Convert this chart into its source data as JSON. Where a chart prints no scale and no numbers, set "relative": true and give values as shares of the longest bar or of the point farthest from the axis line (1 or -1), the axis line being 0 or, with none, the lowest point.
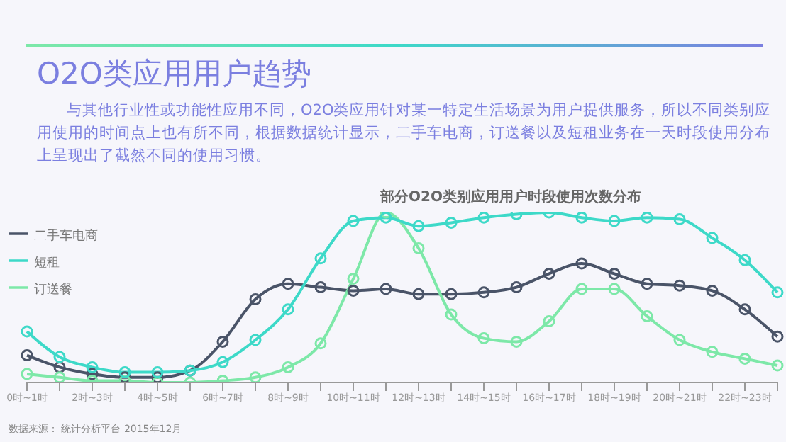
{
  "chart_data": {
    "type": "line",
    "title": "O2O类应用用户趋势",
    "subtitle": "与其他行业性或功能性应用不同，O2O类应用针对某一特定生活场景为用户提供服务，所以不同类别应用使用的时间点上也有所不同，根据数据统计显示，二手车电商，订送餐以及短租业务在一天时段使用分布上呈现出了截然不同的使用习惯。",
    "annotations": [
      "部分O2O类别应用用户时段使用次数分布",
      "数据来源： 统计分析平台 2015年12月"
    ],
    "categories": [
      "0时~1时",
      null,
      "2时~3时",
      null,
      "4时~5时",
      null,
      "6时~7时",
      null,
      "8时~9时",
      null,
      "10时~11时",
      null,
      "12时~13时",
      null,
      "14时~15时",
      null,
      "16时~17时",
      null,
      "18时~19时",
      null,
      "20时~21时",
      null,
      "22时~23时",
      null
    ],
    "relative": true,
    "legend": "left",
    "marker": "circle",
    "line_style": "solid",
    "series": [
      {
        "name": "二手车电商",
        "color": "#4a5468",
        "values": [
          0.16,
          0.09,
          0.05,
          0.03,
          0.03,
          0.07,
          0.24,
          0.49,
          0.58,
          0.56,
          0.54,
          0.55,
          0.52,
          0.52,
          0.53,
          0.56,
          0.64,
          0.7,
          0.64,
          0.58,
          0.57,
          0.54,
          0.43,
          0.27
        ]
      },
      {
        "name": "订送餐",
        "color": "#7de8a8",
        "values": [
          0.05,
          0.03,
          0.01,
          0.01,
          0,
          0,
          0.01,
          0.03,
          0.09,
          0.23,
          0.61,
          1.0,
          0.79,
          0.4,
          0.26,
          0.24,
          0.36,
          0.55,
          0.55,
          0.39,
          0.25,
          0.18,
          0.14,
          0.1
        ]
      },
      {
        "name": "短租",
        "color": "#3dd9c8",
        "values": [
          0.3,
          0.15,
          0.09,
          0.06,
          0.06,
          0.07,
          0.12,
          0.25,
          0.43,
          0.73,
          0.95,
          0.97,
          0.92,
          0.94,
          0.97,
          0.99,
          1.0,
          0.97,
          0.95,
          0.97,
          0.96,
          0.85,
          0.72,
          0.53
        ]
      }
    ]
  }
}
